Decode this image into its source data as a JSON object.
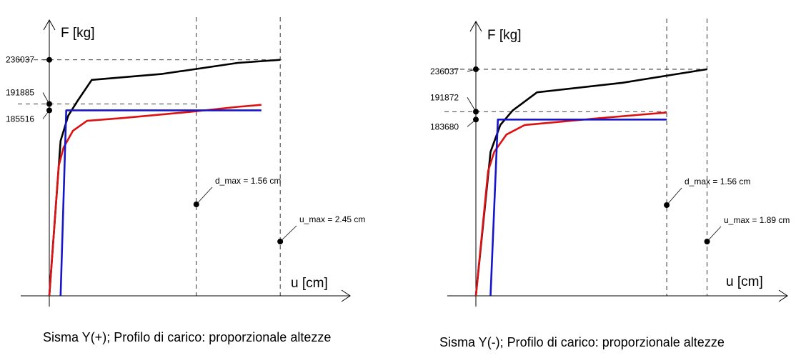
{
  "chart_data": [
    {
      "type": "line",
      "caption": "Sisma Y(+); Profilo di carico: proporzionale altezze",
      "ylabel": "F [kg]",
      "xlabel": "u [cm]",
      "ylim": [
        0,
        236037
      ],
      "grid": false,
      "y_ticks": [
        {
          "value": 236037,
          "label": "236037"
        },
        {
          "value": 191885,
          "label": "191885"
        },
        {
          "value": 185516,
          "label": "185516"
        }
      ],
      "vlines": [
        {
          "x": 1.56,
          "label": "d_max = 1.56 cm"
        },
        {
          "x": 2.45,
          "label": "u_max = 2.45 cm"
        }
      ],
      "series": [
        {
          "color": "#000000",
          "points": [
            [
              0,
              0
            ],
            [
              0.12,
              155000
            ],
            [
              0.2,
              180000
            ],
            [
              0.3,
              195000
            ],
            [
              0.45,
              216000
            ],
            [
              1.2,
              222000
            ],
            [
              2.0,
              233000
            ],
            [
              2.45,
              236037
            ]
          ]
        },
        {
          "color": "#dd1111",
          "points": [
            [
              0,
              0
            ],
            [
              0.1,
              130000
            ],
            [
              0.15,
              148000
            ],
            [
              0.25,
              165000
            ],
            [
              0.4,
              175000
            ],
            [
              0.8,
              178000
            ],
            [
              1.5,
              184000
            ],
            [
              2.0,
              189000
            ],
            [
              2.25,
              191000
            ]
          ]
        },
        {
          "color": "#1515cc",
          "points": [
            [
              0.12,
              0
            ],
            [
              0.18,
              185516
            ],
            [
              2.25,
              185516
            ]
          ]
        }
      ]
    },
    {
      "type": "line",
      "caption": "Sisma Y(-); Profilo di carico: proporzionale altezze",
      "ylabel": "F [kg]",
      "xlabel": "u [cm]",
      "ylim": [
        0,
        236037
      ],
      "grid": false,
      "y_ticks": [
        {
          "value": 236037,
          "label": "236037"
        },
        {
          "value": 191872,
          "label": "191872"
        },
        {
          "value": 183680,
          "label": "183680"
        }
      ],
      "vlines": [
        {
          "x": 1.56,
          "label": "d_max = 1.56 cm"
        },
        {
          "x": 1.89,
          "label": "u_max = 1.89 cm"
        }
      ],
      "series": [
        {
          "color": "#000000",
          "points": [
            [
              0,
              0
            ],
            [
              0.12,
              150000
            ],
            [
              0.2,
              178000
            ],
            [
              0.3,
              193000
            ],
            [
              0.5,
              212000
            ],
            [
              1.2,
              222000
            ],
            [
              1.89,
              236037
            ]
          ]
        },
        {
          "color": "#dd1111",
          "points": [
            [
              0,
              0
            ],
            [
              0.1,
              130000
            ],
            [
              0.15,
              150000
            ],
            [
              0.25,
              168000
            ],
            [
              0.4,
              178000
            ],
            [
              1.0,
              185000
            ],
            [
              1.56,
              191000
            ]
          ]
        },
        {
          "color": "#1515cc",
          "points": [
            [
              0.12,
              0
            ],
            [
              0.18,
              183680
            ],
            [
              1.56,
              183680
            ]
          ]
        }
      ]
    }
  ]
}
